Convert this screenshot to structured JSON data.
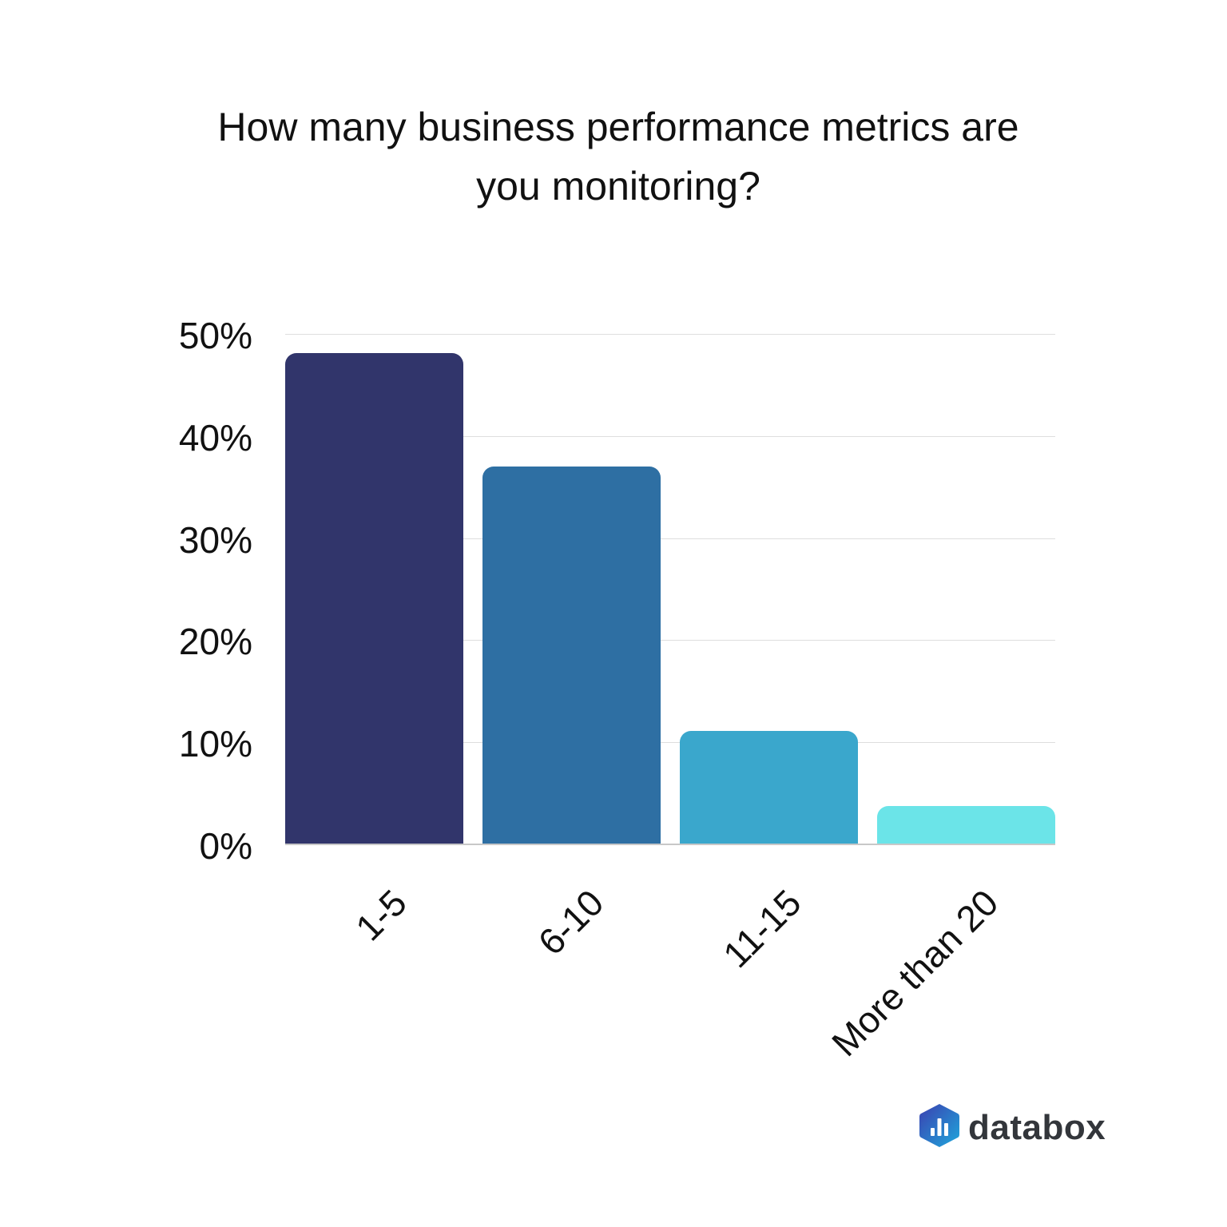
{
  "title": "How many business performance metrics are you monitoring?",
  "title_lines": [
    "How many business performance metrics are",
    "you monitoring?"
  ],
  "y_ticks": [
    "50%",
    "40%",
    "30%",
    "20%",
    "10%",
    "0%"
  ],
  "bars": [
    {
      "label": "1-5",
      "value": 48.2,
      "color": "#31356b"
    },
    {
      "label": "6-10",
      "value": 37.1,
      "color": "#2e6fa3"
    },
    {
      "label": "11-15",
      "value": 11.1,
      "color": "#3aa7cc"
    },
    {
      "label": "More than 20",
      "value": 3.8,
      "color": "#6be4e8"
    }
  ],
  "logo": {
    "text": "databox",
    "icon": "databox-logo-icon"
  },
  "chart_data": {
    "type": "bar",
    "title": "How many business performance metrics are you monitoring?",
    "categories": [
      "1-5",
      "6-10",
      "11-15",
      "More than 20"
    ],
    "values": [
      48.2,
      37.1,
      11.1,
      3.8
    ],
    "colors": [
      "#31356b",
      "#2e6fa3",
      "#3aa7cc",
      "#6be4e8"
    ],
    "xlabel": "",
    "ylabel": "",
    "ylim": [
      0,
      50
    ],
    "y_tick_labels": [
      "0%",
      "10%",
      "20%",
      "30%",
      "40%",
      "50%"
    ],
    "unit": "%",
    "grid": true,
    "legend": "none"
  }
}
